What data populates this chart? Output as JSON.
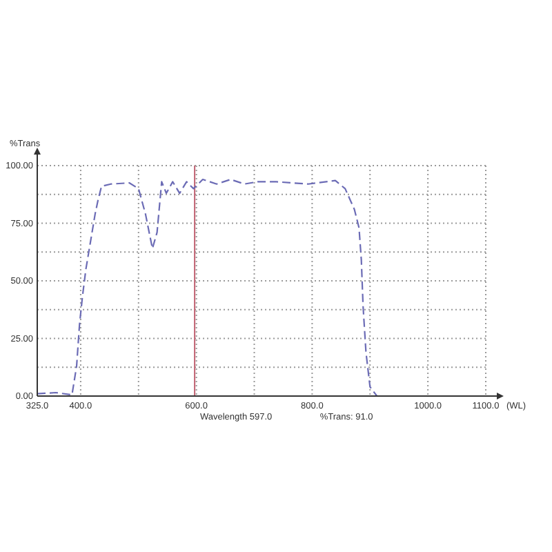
{
  "chart_data": {
    "type": "line",
    "ylabel": "%Trans",
    "xlabel": "(WL)",
    "x": [
      325,
      357,
      385,
      393,
      398,
      403,
      409,
      417,
      425,
      430,
      436,
      452,
      484,
      500,
      512,
      524,
      532,
      540,
      548,
      559,
      571,
      583,
      595,
      611,
      635,
      659,
      683,
      706,
      738,
      793,
      840,
      857,
      873,
      881,
      885,
      888,
      893,
      900,
      912,
      1100
    ],
    "series": [
      {
        "color": "#6b6bb5",
        "values": [
          1,
          1.5,
          0.5,
          13,
          31,
          43,
          55,
          67,
          79,
          85,
          91,
          92,
          92.5,
          90,
          79,
          64,
          71,
          93,
          88,
          93,
          88,
          93,
          90,
          94,
          92,
          94,
          92,
          93,
          93,
          92,
          93.5,
          90,
          81,
          73,
          59,
          39,
          19,
          4,
          0,
          0
        ]
      }
    ],
    "xlim": [
      325,
      1100
    ],
    "xticks": [
      {
        "value": 325,
        "label": "325.0"
      },
      {
        "value": 400,
        "label": "400.0"
      },
      {
        "value": 500,
        "label": null
      },
      {
        "value": 600,
        "label": "600.0"
      },
      {
        "value": 700,
        "label": null
      },
      {
        "value": 800,
        "label": "800.0"
      },
      {
        "value": 900,
        "label": null
      },
      {
        "value": 1000,
        "label": "1000.0"
      },
      {
        "value": 1100,
        "label": "1100.0"
      }
    ],
    "ylim": [
      0,
      100
    ],
    "yticks": [
      {
        "value": 0,
        "label": "0.00"
      },
      {
        "value": 12.5,
        "label": null
      },
      {
        "value": 25,
        "label": "25.00"
      },
      {
        "value": 37.5,
        "label": null
      },
      {
        "value": 50,
        "label": "50.00"
      },
      {
        "value": 62.5,
        "label": null
      },
      {
        "value": 75,
        "label": "75.00"
      },
      {
        "value": 87.5,
        "label": null
      },
      {
        "value": 100,
        "label": "100.00"
      }
    ],
    "grid": true,
    "line_style": "dashed",
    "ref_lines": [
      {
        "axis": "x",
        "value": 597,
        "color": "#c06070"
      }
    ],
    "annotations": [
      "Wavelength 597.0",
      "%Trans: 91.0"
    ]
  }
}
